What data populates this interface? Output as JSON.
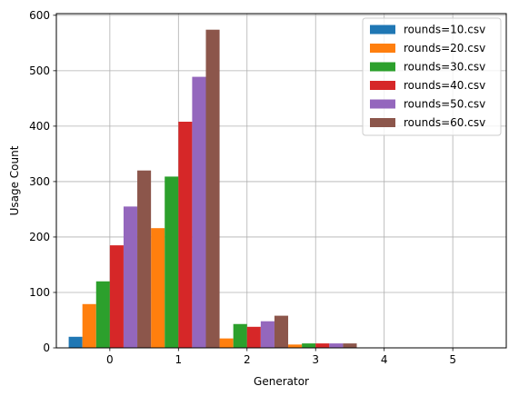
{
  "chart_data": {
    "type": "bar",
    "xlabel": "Generator",
    "ylabel": "Usage Count",
    "xlim": [
      -0.78,
      5.78
    ],
    "ylim": [
      0,
      603
    ],
    "xticks": [
      0,
      1,
      2,
      3,
      4,
      5
    ],
    "yticks": [
      0,
      100,
      200,
      300,
      400,
      500,
      600
    ],
    "grid": true,
    "legend_position": "top-right",
    "bar_width": 0.2,
    "series": [
      {
        "name": "rounds=10.csv",
        "color": "#1f77b4",
        "points": [
          {
            "x": -0.5,
            "y": 20
          }
        ]
      },
      {
        "name": "rounds=20.csv",
        "color": "#ff7f0e",
        "points": [
          {
            "x": -0.3,
            "y": 79
          },
          {
            "x": 0.7,
            "y": 216
          },
          {
            "x": 1.7,
            "y": 17
          },
          {
            "x": 2.7,
            "y": 6
          }
        ]
      },
      {
        "name": "rounds=30.csv",
        "color": "#2ca02c",
        "points": [
          {
            "x": -0.1,
            "y": 120
          },
          {
            "x": 0.9,
            "y": 309
          },
          {
            "x": 1.9,
            "y": 43
          },
          {
            "x": 2.9,
            "y": 8
          }
        ]
      },
      {
        "name": "rounds=40.csv",
        "color": "#d62728",
        "points": [
          {
            "x": 0.1,
            "y": 185
          },
          {
            "x": 1.1,
            "y": 408
          },
          {
            "x": 2.1,
            "y": 38
          },
          {
            "x": 3.1,
            "y": 8
          }
        ]
      },
      {
        "name": "rounds=50.csv",
        "color": "#9467bd",
        "points": [
          {
            "x": 0.3,
            "y": 255
          },
          {
            "x": 1.3,
            "y": 489
          },
          {
            "x": 2.3,
            "y": 48
          },
          {
            "x": 3.3,
            "y": 8
          }
        ]
      },
      {
        "name": "rounds=60.csv",
        "color": "#8c564b",
        "points": [
          {
            "x": 0.5,
            "y": 320
          },
          {
            "x": 1.5,
            "y": 574
          },
          {
            "x": 2.5,
            "y": 58
          },
          {
            "x": 3.5,
            "y": 8
          }
        ]
      }
    ]
  }
}
